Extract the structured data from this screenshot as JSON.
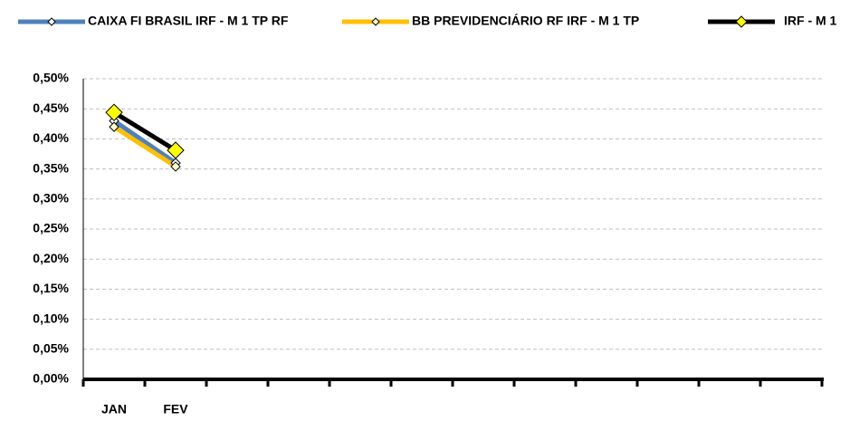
{
  "chart_data": {
    "type": "line",
    "categories": [
      "JAN",
      "FEV",
      null,
      null,
      null,
      null,
      null,
      null,
      null,
      null,
      null,
      null
    ],
    "series": [
      {
        "name": "CAIXA FI BRASIL IRF - M 1 TP RF",
        "color": "#4f81bd",
        "marker_color": "#ffffff",
        "values": [
          0.43,
          0.36,
          null,
          null,
          null,
          null,
          null,
          null,
          null,
          null,
          null,
          null
        ]
      },
      {
        "name": "BB PREVIDENCIÁRIO RF IRF - M 1 TP",
        "color": "#ffc000",
        "marker_color": "#ffffcc",
        "values": [
          0.42,
          0.354,
          null,
          null,
          null,
          null,
          null,
          null,
          null,
          null,
          null,
          null
        ]
      },
      {
        "name": "IRF - M 1",
        "color": "#000000",
        "marker_color": "#ffff00",
        "values": [
          0.444,
          0.381,
          null,
          null,
          null,
          null,
          null,
          null,
          null,
          null,
          null,
          null
        ]
      }
    ],
    "ylim": [
      0,
      0.5
    ],
    "yticks": [
      {
        "value": 0,
        "label": "0,00%"
      },
      {
        "value": 0.05,
        "label": "0,05%"
      },
      {
        "value": 0.1,
        "label": "0,10%"
      },
      {
        "value": 0.15,
        "label": "0,15%"
      },
      {
        "value": 0.2,
        "label": "0,20%"
      },
      {
        "value": 0.25,
        "label": "0,25%"
      },
      {
        "value": 0.3,
        "label": "0,30%"
      },
      {
        "value": 0.35,
        "label": "0,35%"
      },
      {
        "value": 0.4,
        "label": "0,40%"
      },
      {
        "value": 0.45,
        "label": "0,45%"
      },
      {
        "value": 0.5,
        "label": "0,50%"
      }
    ],
    "grid": true,
    "legend": "top"
  }
}
